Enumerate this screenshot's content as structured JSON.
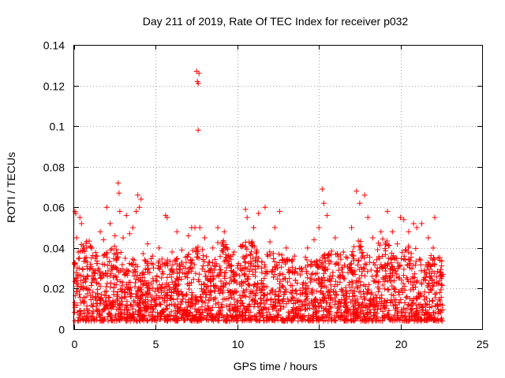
{
  "chart_data": {
    "type": "scatter",
    "title": "Day 211 of 2019, Rate Of TEC Index for receiver p032",
    "xlabel": "GPS time / hours",
    "ylabel": "ROTI / TECUs",
    "xlim": [
      0,
      25
    ],
    "ylim": [
      0,
      0.14
    ],
    "xticks": [
      0,
      5,
      10,
      15,
      20,
      25
    ],
    "xtick_labels": [
      "0",
      "5",
      "10",
      "15",
      "20",
      "25"
    ],
    "yticks": [
      0,
      0.02,
      0.04,
      0.06,
      0.08,
      0.1,
      0.12,
      0.14
    ],
    "ytick_labels": [
      "0",
      "0.02",
      "0.04",
      "0.06",
      "0.08",
      "0.1",
      "0.12",
      "0.14"
    ],
    "grid": true,
    "marker": "+",
    "marker_color": "#ff0000",
    "data_extent_hours": [
      0,
      22.6
    ],
    "series": [
      {
        "name": "ROTI",
        "points": [
          [
            0.05,
            0.058
          ],
          [
            0.1,
            0.057
          ],
          [
            0.15,
            0.045
          ],
          [
            0.25,
            0.038
          ],
          [
            0.35,
            0.055
          ],
          [
            0.45,
            0.052
          ],
          [
            0.6,
            0.04
          ],
          [
            0.8,
            0.033
          ],
          [
            1.0,
            0.032
          ],
          [
            1.4,
            0.036
          ],
          [
            1.6,
            0.048
          ],
          [
            1.8,
            0.044
          ],
          [
            2.0,
            0.06
          ],
          [
            2.2,
            0.052
          ],
          [
            2.5,
            0.046
          ],
          [
            2.7,
            0.072
          ],
          [
            2.75,
            0.067
          ],
          [
            2.8,
            0.058
          ],
          [
            3.0,
            0.045
          ],
          [
            3.2,
            0.056
          ],
          [
            3.4,
            0.047
          ],
          [
            3.6,
            0.05
          ],
          [
            3.8,
            0.058
          ],
          [
            3.9,
            0.066
          ],
          [
            4.0,
            0.06
          ],
          [
            4.1,
            0.064
          ],
          [
            4.5,
            0.042
          ],
          [
            4.8,
            0.036
          ],
          [
            5.2,
            0.04
          ],
          [
            5.6,
            0.056
          ],
          [
            5.7,
            0.055
          ],
          [
            6.0,
            0.038
          ],
          [
            6.3,
            0.048
          ],
          [
            6.6,
            0.039
          ],
          [
            7.0,
            0.046
          ],
          [
            7.2,
            0.05
          ],
          [
            7.4,
            0.05
          ],
          [
            7.5,
            0.127
          ],
          [
            7.55,
            0.122
          ],
          [
            7.6,
            0.098
          ],
          [
            7.65,
            0.126
          ],
          [
            7.6,
            0.121
          ],
          [
            7.7,
            0.05
          ],
          [
            8.0,
            0.045
          ],
          [
            8.5,
            0.04
          ],
          [
            8.8,
            0.05
          ],
          [
            9.2,
            0.048
          ],
          [
            9.5,
            0.035
          ],
          [
            9.8,
            0.038
          ],
          [
            10.2,
            0.041
          ],
          [
            10.5,
            0.059
          ],
          [
            10.6,
            0.055
          ],
          [
            11.0,
            0.05
          ],
          [
            11.3,
            0.057
          ],
          [
            11.7,
            0.06
          ],
          [
            12.0,
            0.043
          ],
          [
            12.3,
            0.05
          ],
          [
            12.6,
            0.058
          ],
          [
            13.0,
            0.04
          ],
          [
            13.5,
            0.036
          ],
          [
            13.8,
            0.03
          ],
          [
            14.3,
            0.04
          ],
          [
            14.7,
            0.044
          ],
          [
            15.0,
            0.05
          ],
          [
            15.2,
            0.069
          ],
          [
            15.3,
            0.062
          ],
          [
            15.5,
            0.056
          ],
          [
            16.0,
            0.045
          ],
          [
            16.5,
            0.038
          ],
          [
            17.0,
            0.05
          ],
          [
            17.3,
            0.068
          ],
          [
            17.5,
            0.062
          ],
          [
            17.8,
            0.066
          ],
          [
            18.0,
            0.055
          ],
          [
            18.3,
            0.045
          ],
          [
            18.8,
            0.048
          ],
          [
            19.2,
            0.058
          ],
          [
            19.5,
            0.048
          ],
          [
            19.8,
            0.042
          ],
          [
            20.0,
            0.055
          ],
          [
            20.2,
            0.054
          ],
          [
            20.5,
            0.048
          ],
          [
            20.8,
            0.052
          ],
          [
            21.0,
            0.05
          ],
          [
            21.3,
            0.052
          ],
          [
            21.7,
            0.045
          ],
          [
            22.0,
            0.04
          ],
          [
            22.1,
            0.055
          ],
          [
            22.3,
            0.035
          ],
          [
            22.5,
            0.022
          ],
          [
            0.3,
            0.03
          ],
          [
            0.7,
            0.025
          ],
          [
            1.2,
            0.028
          ],
          [
            2.3,
            0.03
          ],
          [
            3.5,
            0.032
          ],
          [
            4.3,
            0.027
          ],
          [
            5.0,
            0.024
          ],
          [
            6.8,
            0.03
          ],
          [
            8.3,
            0.033
          ],
          [
            9.0,
            0.028
          ],
          [
            10.8,
            0.031
          ],
          [
            12.8,
            0.027
          ],
          [
            14.0,
            0.022
          ],
          [
            16.2,
            0.029
          ],
          [
            18.5,
            0.026
          ],
          [
            19.6,
            0.03
          ],
          [
            21.5,
            0.028
          ],
          [
            22.4,
            0.018
          ]
        ]
      }
    ],
    "dense_band": {
      "description_hours": [
        0,
        22.6
      ],
      "typical_range": [
        0.004,
        0.03
      ]
    }
  }
}
